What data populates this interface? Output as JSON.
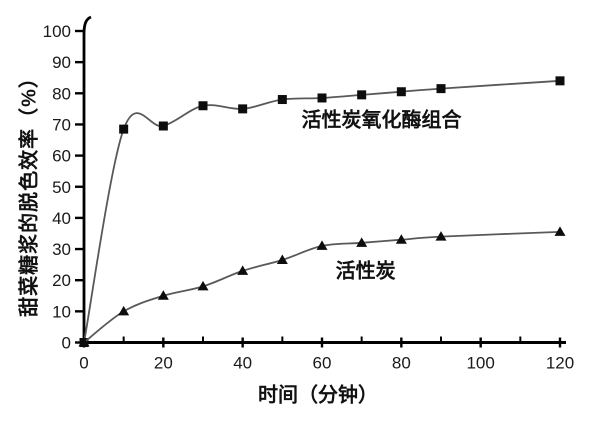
{
  "chart_data": {
    "type": "line",
    "title": "",
    "xlabel": "时间（分钟）",
    "ylabel": "甜菜糖浆的脱色效率（%）",
    "xlim": [
      0,
      120
    ],
    "ylim": [
      0,
      100
    ],
    "xticks_major": [
      0,
      20,
      40,
      60,
      80,
      100,
      120
    ],
    "xticks_minor": [
      10,
      30,
      50,
      70,
      90,
      110
    ],
    "yticks": [
      0,
      10,
      20,
      30,
      40,
      50,
      60,
      70,
      80,
      90,
      100
    ],
    "grid": false,
    "legend_position": "inline-annotations",
    "x": [
      0,
      10,
      20,
      30,
      40,
      50,
      60,
      70,
      80,
      90,
      120
    ],
    "series": [
      {
        "name": "活性炭氧化酶组合",
        "marker": "square",
        "values": [
          0,
          68.5,
          69.5,
          76,
          75,
          78,
          78.5,
          79.5,
          80.5,
          81.5,
          84
        ]
      },
      {
        "name": "活性炭",
        "marker": "triangle",
        "values": [
          0,
          10,
          15,
          18,
          23,
          26.5,
          31,
          32,
          33,
          34,
          35.5
        ]
      }
    ],
    "annotations": [
      {
        "text": "活性炭氧化酶组合",
        "x": 75,
        "y": 72
      },
      {
        "text": "活性炭",
        "x": 71,
        "y": 23.5
      }
    ],
    "colors": {
      "line": "#595959",
      "marker": "#0d0d0d",
      "axis": "#000000",
      "text": "#1a1a1a",
      "background": "#ffffff"
    }
  }
}
